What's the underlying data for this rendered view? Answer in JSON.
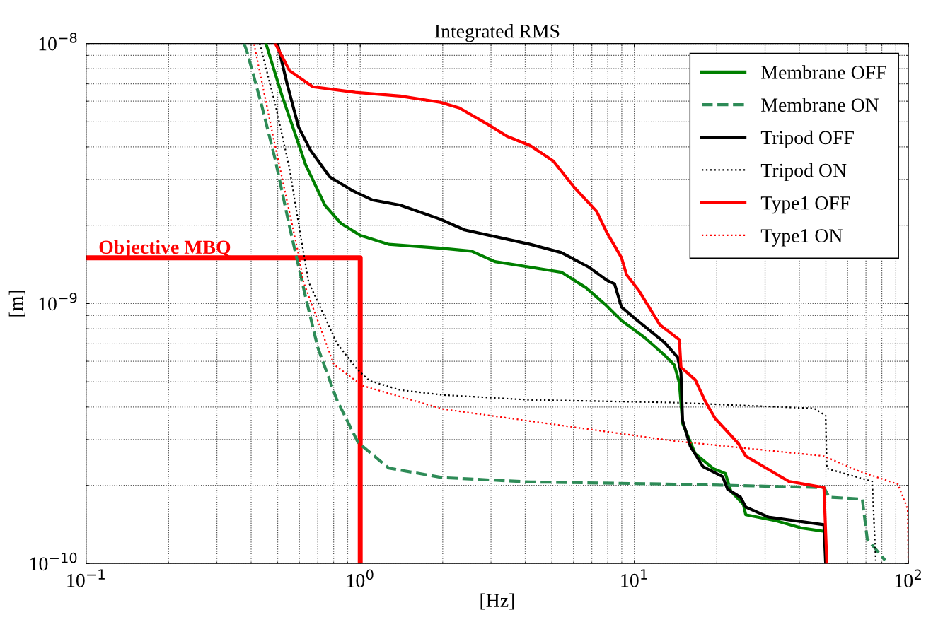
{
  "chart_data": {
    "type": "line",
    "title": "Integrated RMS",
    "xlabel": "[Hz]",
    "ylabel": "[m]",
    "log": "xy",
    "grid": true,
    "legend": "top right",
    "xlim": [
      0.1,
      100
    ],
    "ylim": [
      1e-10,
      1e-08
    ],
    "xticks": [
      {
        "value": 0.1,
        "label": "10$^{−1}$"
      },
      {
        "value": 1,
        "label": "10$^{0}$"
      },
      {
        "value": 10,
        "label": "10$^{1}$"
      },
      {
        "value": 100,
        "label": "10$^{2}$"
      }
    ],
    "yticks": [
      {
        "value": 1e-10,
        "label": "10$^{−10}$"
      },
      {
        "value": 1e-09,
        "label": "10$^{−9}$"
      },
      {
        "value": 1e-08,
        "label": "10$^{−8}$"
      }
    ],
    "annotations": [
      "Objective MBQ"
    ],
    "series": [
      {
        "name": "Membrane OFF",
        "color": "#008000",
        "line_style": "solid",
        "x": [
          0.453,
          0.519,
          0.575,
          0.632,
          0.743,
          0.852,
          1.0,
          1.27,
          2.0,
          2.55,
          3.1,
          4.17,
          5.42,
          6.67,
          7.93,
          8.98,
          10.9,
          12.9,
          14.0,
          14.6,
          15.0,
          16.7,
          19.4,
          21.5,
          22.5,
          25.0,
          25.5,
          32.9,
          40.7,
          49.2
        ],
        "values": [
          1e-08,
          6.28e-09,
          4.59e-09,
          3.42e-09,
          2.39e-09,
          2.03e-09,
          1.83e-09,
          1.69e-09,
          1.63e-09,
          1.59e-09,
          1.45e-09,
          1.38e-09,
          1.32e-09,
          1.15e-09,
          9.8e-10,
          8.6e-10,
          7.4e-10,
          6.33e-10,
          5.8e-10,
          4.95e-10,
          3.46e-10,
          2.64e-10,
          2.32e-10,
          2.22e-10,
          1.9e-10,
          1.69e-10,
          1.54e-10,
          1.46e-10,
          1.37e-10,
          1.33e-10
        ]
      },
      {
        "name": "Membrane ON",
        "color": "#2e8b57",
        "line_style": "dashed",
        "x": [
          0.377,
          0.386,
          0.435,
          0.49,
          0.552,
          0.632,
          0.7,
          0.822,
          0.982,
          1.27,
          2.0,
          4.17,
          14.0,
          49.2,
          51.4,
          67.9,
          70.8,
          82.2
        ],
        "values": [
          1e-08,
          9.33e-09,
          5.9e-09,
          3.57e-09,
          1.98e-09,
          1.06e-09,
          6.78e-10,
          4.26e-10,
          2.92e-10,
          2.33e-10,
          2.14e-10,
          2.06e-10,
          2.02e-10,
          1.96e-10,
          1.8e-10,
          1.77e-10,
          1.24e-10,
          1.03e-10
        ]
      },
      {
        "name": "Tripod OFF",
        "color": "#000000",
        "line_style": "solid",
        "x": [
          0.499,
          0.542,
          0.596,
          0.659,
          0.774,
          0.942,
          1.11,
          1.4,
          1.96,
          2.4,
          4.17,
          5.42,
          6.83,
          7.93,
          8.47,
          8.98,
          10.2,
          12.9,
          14.4,
          14.8,
          15.0,
          16.0,
          17.8,
          21.0,
          21.9,
          24.4,
          25.5,
          30.8,
          49.2,
          49.9
        ],
        "values": [
          1e-08,
          6.95e-09,
          4.77e-09,
          3.88e-09,
          3.07e-09,
          2.71e-09,
          2.5e-09,
          2.39e-09,
          2.11e-09,
          1.92e-09,
          1.69e-09,
          1.57e-09,
          1.38e-09,
          1.23e-09,
          1.19e-09,
          9.7e-10,
          8.65e-10,
          7.08e-10,
          6.21e-10,
          5.41e-10,
          3.55e-10,
          2.83e-10,
          2.36e-10,
          2.16e-10,
          1.93e-10,
          1.8e-10,
          1.65e-10,
          1.51e-10,
          1.41e-10,
          1e-10
        ]
      },
      {
        "name": "Tripod ON",
        "color": "#000000",
        "line_style": "dotted",
        "x": [
          0.43,
          0.49,
          0.552,
          0.603,
          0.648,
          0.822,
          0.971,
          1.08,
          1.4,
          2.0,
          4.17,
          14.0,
          45.3,
          49.9,
          50.4,
          73.8,
          76.0
        ],
        "values": [
          1e-08,
          5.83e-09,
          3.31e-09,
          1.88e-09,
          1.21e-09,
          7.04e-10,
          5.61e-10,
          5.05e-10,
          4.65e-10,
          4.45e-10,
          4.26e-10,
          4.16e-10,
          3.95e-10,
          3.71e-10,
          2.32e-10,
          2.07e-10,
          1.03e-10
        ]
      },
      {
        "name": "Type1 OFF",
        "color": "#ff0000",
        "line_style": "solid",
        "x": [
          0.49,
          0.552,
          0.671,
          0.959,
          1.4,
          1.96,
          2.3,
          2.92,
          3.43,
          4.17,
          5.07,
          6.0,
          7.29,
          7.93,
          8.98,
          9.37,
          10.4,
          12.4,
          14.6,
          14.8,
          16.7,
          18.1,
          19.7,
          24.0,
          25.5,
          36.6,
          49.2,
          50.4
        ],
        "values": [
          1e-08,
          7.87e-09,
          6.82e-09,
          6.49e-09,
          6.28e-09,
          5.94e-09,
          5.65e-09,
          4.89e-09,
          4.4e-09,
          4.05e-09,
          3.53e-09,
          2.82e-09,
          2.26e-09,
          1.88e-09,
          1.5e-09,
          1.29e-09,
          1.12e-09,
          8.28e-10,
          7.26e-10,
          5.69e-10,
          5.08e-10,
          4.23e-10,
          3.62e-10,
          2.89e-10,
          2.59e-10,
          2.07e-10,
          1.96e-10,
          1e-10
        ]
      },
      {
        "name": "Type1 ON",
        "color": "#ff0000",
        "line_style": "dotted",
        "x": [
          0.41,
          0.481,
          0.596,
          0.621,
          0.802,
          1.02,
          2.0,
          4.17,
          14.0,
          49.2,
          66.4,
          91.5,
          99.4,
          100
        ],
        "values": [
          9.94e-09,
          4.4e-09,
          1.54e-09,
          1.21e-09,
          5.83e-10,
          4.83e-10,
          3.93e-10,
          3.53e-10,
          2.96e-10,
          2.59e-10,
          2.26e-10,
          2.02e-10,
          1.62e-10,
          1e-10
        ]
      },
      {
        "color": "#ff0000",
        "line_style": "solid",
        "x": [
          0.1,
          1,
          1
        ],
        "values": [
          1.5e-09,
          1.5e-09,
          1e-10
        ]
      }
    ]
  }
}
